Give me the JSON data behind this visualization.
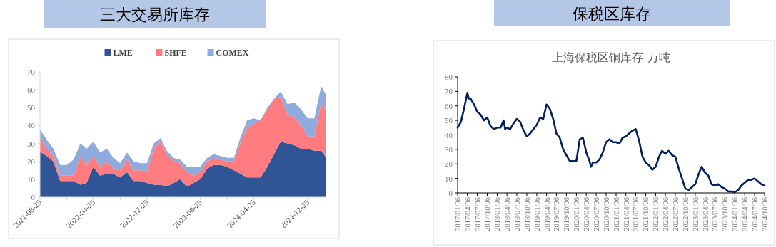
{
  "chart_data": [
    {
      "type": "area",
      "title": "三大交易所库存",
      "stacked": true,
      "legend": "top",
      "x": [
        "2021-08-25",
        "2021-09-25",
        "2021-10-25",
        "2021-11-25",
        "2021-12-25",
        "2022-01-25",
        "2022-02-25",
        "2022-03-25",
        "2022-04-25",
        "2022-05-25",
        "2022-06-25",
        "2022-07-25",
        "2022-08-25",
        "2022-09-25",
        "2022-10-25",
        "2022-11-25",
        "2022-12-25",
        "2023-01-25",
        "2023-02-25",
        "2023-03-25",
        "2023-04-25",
        "2023-05-25",
        "2023-06-25",
        "2023-07-25",
        "2023-08-25",
        "2023-09-25",
        "2023-10-25",
        "2023-11-25",
        "2023-12-25",
        "2024-01-25",
        "2024-02-25",
        "2024-03-25",
        "2024-04-25",
        "2024-05-25",
        "2024-06-25",
        "2024-07-25",
        "2024-08-25",
        "2024-09-25",
        "2024-10-25",
        "2024-11-25",
        "2024-12-25",
        "2025-01-25",
        "2025-02-25",
        "2025-03-20"
      ],
      "series": [
        {
          "name": "LME",
          "color": "#2f5597",
          "values": [
            25.5,
            23,
            20,
            9,
            9,
            9,
            7,
            8,
            17,
            12,
            13,
            13,
            11,
            14,
            9,
            9,
            8,
            7,
            7,
            6,
            8,
            10,
            6,
            8,
            10,
            16,
            18,
            18,
            17,
            15,
            13,
            11,
            11,
            11,
            17,
            24,
            31,
            30,
            29,
            27,
            27,
            26,
            26,
            22
          ]
        },
        {
          "name": "SHFE",
          "color": "#ff7c80",
          "values": [
            7.5,
            4,
            3,
            3,
            3,
            3,
            16,
            10,
            6,
            5,
            7,
            3,
            4,
            7,
            6,
            6,
            6,
            20,
            24,
            18,
            12,
            9,
            8,
            4,
            4,
            4,
            4,
            3,
            3,
            5,
            18,
            28,
            30,
            32,
            32,
            31,
            25,
            16,
            16,
            13,
            7,
            8,
            27,
            26
          ]
        },
        {
          "name": "COMEX",
          "color": "#8faadc",
          "values": [
            5,
            5,
            4,
            6,
            6,
            9,
            7,
            9,
            8,
            8,
            7,
            6,
            4,
            4,
            5,
            4,
            5,
            3,
            2,
            2,
            2,
            2,
            3,
            5,
            3,
            2,
            2,
            2,
            2,
            2,
            3,
            4,
            3,
            0,
            1,
            0,
            3,
            6,
            8,
            9,
            10,
            10,
            9,
            9
          ]
        }
      ],
      "ylim": [
        0,
        70
      ],
      "yticks": [
        0,
        10,
        20,
        30,
        40,
        50,
        60,
        70
      ],
      "xlim": [
        "2021-08-25",
        "2025-03-20"
      ],
      "xticks": [
        {
          "value": "2021-08-25",
          "label": "2021-08-25"
        },
        {
          "value": "2021-12-25",
          "label": null
        },
        {
          "value": "2022-04-25",
          "label": "2022-04-25"
        },
        {
          "value": "2022-08-25",
          "label": null
        },
        {
          "value": "2022-12-25",
          "label": "2022-12-25"
        },
        {
          "value": "2023-04-25",
          "label": null
        },
        {
          "value": "2023-08-25",
          "label": "2023-08-25"
        },
        {
          "value": "2023-12-25",
          "label": null
        },
        {
          "value": "2024-04-25",
          "label": "2024-04-25"
        },
        {
          "value": "2024-08-25",
          "label": null
        },
        {
          "value": "2024-12-25",
          "label": "2024-12-25"
        }
      ]
    },
    {
      "type": "line",
      "title": "保税区库存",
      "subtitle": "上海保税区铜库存 万吨",
      "legend": false,
      "series": [
        {
          "color": "#002060",
          "x": [
            "2017-01-06",
            "2017-02-06",
            "2017-03-06",
            "2017-04-06",
            "2017-04-20",
            "2017-05-06",
            "2017-06-06",
            "2017-07-06",
            "2017-08-06",
            "2017-09-06",
            "2017-10-06",
            "2017-11-06",
            "2017-12-06",
            "2018-01-06",
            "2018-02-06",
            "2018-03-06",
            "2018-03-20",
            "2018-04-06",
            "2018-05-06",
            "2018-06-06",
            "2018-07-06",
            "2018-08-06",
            "2018-09-06",
            "2018-10-06",
            "2018-11-06",
            "2018-12-06",
            "2019-01-06",
            "2019-02-06",
            "2019-03-06",
            "2019-04-06",
            "2019-05-06",
            "2019-06-06",
            "2019-07-06",
            "2019-08-06",
            "2019-09-06",
            "2019-10-06",
            "2019-11-06",
            "2019-12-06",
            "2020-01-06",
            "2020-02-06",
            "2020-03-06",
            "2020-04-06",
            "2020-05-06",
            "2020-05-20",
            "2020-06-06",
            "2020-07-06",
            "2020-08-06",
            "2020-09-06",
            "2020-10-06",
            "2020-11-06",
            "2020-12-06",
            "2021-01-06",
            "2021-02-06",
            "2021-03-06",
            "2021-04-06",
            "2021-05-06",
            "2021-06-06",
            "2021-07-06",
            "2021-08-06",
            "2021-09-06",
            "2021-10-06",
            "2021-11-06",
            "2021-12-06",
            "2022-01-06",
            "2022-02-06",
            "2022-03-06",
            "2022-04-06",
            "2022-05-06",
            "2022-06-06",
            "2022-07-06",
            "2022-08-06",
            "2022-09-06",
            "2022-10-06",
            "2022-11-06",
            "2022-12-06",
            "2023-01-06",
            "2023-02-06",
            "2023-03-06",
            "2023-04-06",
            "2023-05-06",
            "2023-06-06",
            "2023-07-06",
            "2023-08-06",
            "2023-09-06",
            "2023-10-06",
            "2023-11-06",
            "2023-12-06",
            "2024-01-06",
            "2024-02-06",
            "2024-03-06",
            "2024-04-06",
            "2024-05-06",
            "2024-06-06",
            "2024-07-06",
            "2024-08-06",
            "2024-09-06",
            "2024-10-06"
          ],
          "values": [
            45,
            49,
            58,
            69,
            65,
            65,
            61,
            56,
            54,
            50,
            52,
            46,
            44,
            45,
            45,
            50,
            44,
            45,
            44,
            48,
            51,
            49,
            43,
            39,
            41,
            44,
            47,
            52,
            51,
            61,
            58,
            51,
            41,
            38,
            30,
            26,
            22,
            22,
            22,
            37,
            38,
            28,
            22,
            18,
            21,
            21,
            23,
            28,
            35,
            37,
            35,
            35,
            34,
            38,
            39,
            41,
            43,
            44,
            36,
            25,
            21,
            19,
            16,
            18,
            25,
            29,
            27,
            29,
            26,
            25,
            17,
            10,
            3,
            2,
            4,
            6,
            13,
            18,
            14,
            12,
            6,
            5,
            6,
            4,
            3,
            1,
            1,
            0.5,
            2,
            5,
            7,
            9,
            9,
            10,
            8,
            6,
            5
          ]
        }
      ],
      "ylim": [
        0,
        80
      ],
      "yticks": [
        0,
        10,
        20,
        30,
        40,
        50,
        60,
        70,
        80
      ],
      "xlim": [
        "2017-01-06",
        "2024-10-06"
      ],
      "xticks": [
        {
          "value": "2017-01-06",
          "label": "2017/01/06"
        },
        {
          "value": "2017-04-06",
          "label": "2017/04/06"
        },
        {
          "value": "2017-07-06",
          "label": "2017/07/06"
        },
        {
          "value": "2017-10-06",
          "label": "2017/10/06"
        },
        {
          "value": "2018-01-06",
          "label": "2018/01/06"
        },
        {
          "value": "2018-04-06",
          "label": "2018/04/06"
        },
        {
          "value": "2018-07-06",
          "label": "2018/07/06"
        },
        {
          "value": "2018-10-06",
          "label": "2018/10/06"
        },
        {
          "value": "2019-01-06",
          "label": "2019/01/06"
        },
        {
          "value": "2019-04-06",
          "label": "2019/04/06"
        },
        {
          "value": "2019-07-06",
          "label": "2019/07/06"
        },
        {
          "value": "2019-10-06",
          "label": "2019/10/06"
        },
        {
          "value": "2020-01-06",
          "label": "2020/01/06"
        },
        {
          "value": "2020-04-06",
          "label": "2020/04/06"
        },
        {
          "value": "2020-07-06",
          "label": "2020/07/06"
        },
        {
          "value": "2020-10-06",
          "label": "2020/10/06"
        },
        {
          "value": "2021-01-06",
          "label": "2021/01/06"
        },
        {
          "value": "2021-04-06",
          "label": "2021/04/06"
        },
        {
          "value": "2021-07-06",
          "label": "2021/07/06"
        },
        {
          "value": "2021-10-06",
          "label": "2021/10/06"
        },
        {
          "value": "2022-01-06",
          "label": "2022/01/06"
        },
        {
          "value": "2022-04-06",
          "label": "2022/04/06"
        },
        {
          "value": "2022-07-06",
          "label": "2022/07/06"
        },
        {
          "value": "2022-10-06",
          "label": "2022/10/06"
        },
        {
          "value": "2023-01-06",
          "label": "2023/01/06"
        },
        {
          "value": "2023-04-06",
          "label": "2023/04/06"
        },
        {
          "value": "2023-07-06",
          "label": "2023/07/06"
        },
        {
          "value": "2023-10-06",
          "label": "2023/10/06"
        },
        {
          "value": "2024-01-06",
          "label": "2024/01/06"
        },
        {
          "value": "2024-04-06",
          "label": "2024/04/06"
        },
        {
          "value": "2024-07-06",
          "label": "2024/07/06"
        },
        {
          "value": "2024-10-06",
          "label": "2024/10/06"
        }
      ]
    }
  ]
}
